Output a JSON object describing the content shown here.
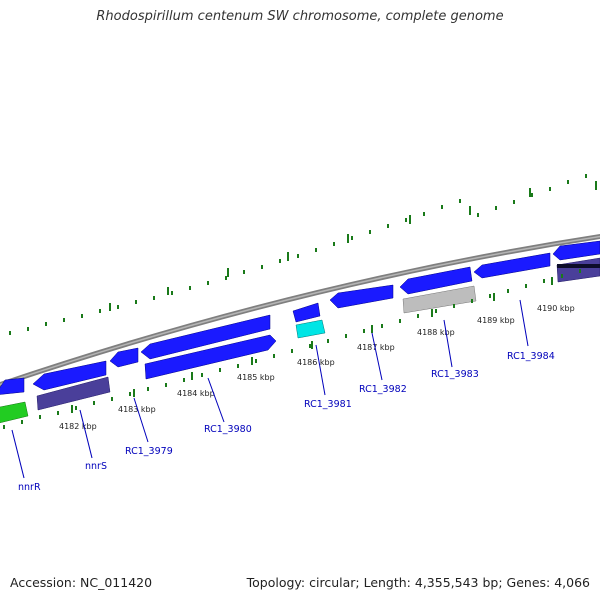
{
  "title": "Rhodospirillum centenum SW chromosome, complete genome",
  "accession": "Accession: NC_011420",
  "topology": "Topology: circular; Length: 4,355,543 bp; Genes: 4,066",
  "colors": {
    "cds": "#1a1aff",
    "cds_dark": "#2b2bb8",
    "rna": "#22cc22",
    "pseudo": "#bdbdbd",
    "misc": "#4a3f9a",
    "cyan": "#00e5e5",
    "backbone": "#7f7f7f",
    "tick": "#1a7a1a",
    "label": "#0000bb"
  },
  "kbp_labels": [
    "4182 kbp",
    "4183 kbp",
    "4184 kbp",
    "4185 kbp",
    "4186 kbp",
    "4187 kbp",
    "4188 kbp",
    "4189 kbp",
    "4190 kbp"
  ],
  "gene_labels": [
    "nnrR",
    "nnrS",
    "RC1_3979",
    "RC1_3980",
    "RC1_3981",
    "RC1_3982",
    "RC1_3983",
    "RC1_3984"
  ]
}
